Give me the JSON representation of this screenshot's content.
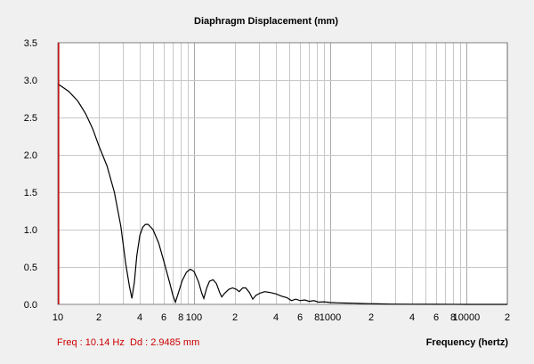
{
  "chart_data": {
    "type": "line",
    "title": "Diaphragm Displacement (mm)",
    "xlabel": "Frequency (hertz)",
    "ylabel": "",
    "x_scale": "log",
    "xlim": [
      10,
      20000
    ],
    "ylim": [
      0,
      3.5
    ],
    "grid": true,
    "y_ticks": [
      "0.0",
      "0.5",
      "1.0",
      "1.5",
      "2.0",
      "2.5",
      "3.0",
      "3.5"
    ],
    "x_tick_labels": [
      {
        "f": 10,
        "label": "10"
      },
      {
        "f": 20,
        "label": "2"
      },
      {
        "f": 40,
        "label": "4"
      },
      {
        "f": 60,
        "label": "6"
      },
      {
        "f": 80,
        "label": "8"
      },
      {
        "f": 100,
        "label": "100"
      },
      {
        "f": 200,
        "label": "2"
      },
      {
        "f": 400,
        "label": "4"
      },
      {
        "f": 600,
        "label": "6"
      },
      {
        "f": 800,
        "label": "8"
      },
      {
        "f": 1000,
        "label": "1000"
      },
      {
        "f": 2000,
        "label": "2"
      },
      {
        "f": 4000,
        "label": "4"
      },
      {
        "f": 6000,
        "label": "6"
      },
      {
        "f": 8000,
        "label": "8"
      },
      {
        "f": 10000,
        "label": "10000"
      },
      {
        "f": 20000,
        "label": "2"
      }
    ],
    "series": [
      {
        "color": "#000000",
        "points": [
          [
            10,
            2.95
          ],
          [
            12,
            2.85
          ],
          [
            14,
            2.72
          ],
          [
            16,
            2.55
          ],
          [
            18,
            2.35
          ],
          [
            20,
            2.12
          ],
          [
            23,
            1.85
          ],
          [
            26,
            1.5
          ],
          [
            29,
            1.05
          ],
          [
            31.5,
            0.55
          ],
          [
            33.5,
            0.25
          ],
          [
            35,
            0.08
          ],
          [
            36.5,
            0.3
          ],
          [
            38,
            0.65
          ],
          [
            40,
            0.92
          ],
          [
            42,
            1.03
          ],
          [
            44,
            1.07
          ],
          [
            46,
            1.07
          ],
          [
            50,
            1.0
          ],
          [
            55,
            0.82
          ],
          [
            60,
            0.58
          ],
          [
            66,
            0.3
          ],
          [
            70,
            0.12
          ],
          [
            73,
            0.03
          ],
          [
            77,
            0.16
          ],
          [
            82,
            0.32
          ],
          [
            88,
            0.43
          ],
          [
            94,
            0.47
          ],
          [
            100,
            0.44
          ],
          [
            108,
            0.3
          ],
          [
            114,
            0.15
          ],
          [
            118,
            0.08
          ],
          [
            124,
            0.22
          ],
          [
            130,
            0.31
          ],
          [
            138,
            0.33
          ],
          [
            146,
            0.28
          ],
          [
            155,
            0.15
          ],
          [
            160,
            0.1
          ],
          [
            168,
            0.15
          ],
          [
            180,
            0.2
          ],
          [
            192,
            0.22
          ],
          [
            205,
            0.2
          ],
          [
            215,
            0.17
          ],
          [
            228,
            0.22
          ],
          [
            240,
            0.22
          ],
          [
            255,
            0.16
          ],
          [
            270,
            0.07
          ],
          [
            285,
            0.12
          ],
          [
            305,
            0.15
          ],
          [
            330,
            0.17
          ],
          [
            360,
            0.16
          ],
          [
            400,
            0.14
          ],
          [
            440,
            0.11
          ],
          [
            480,
            0.09
          ],
          [
            520,
            0.05
          ],
          [
            560,
            0.07
          ],
          [
            600,
            0.05
          ],
          [
            650,
            0.06
          ],
          [
            700,
            0.04
          ],
          [
            760,
            0.05
          ],
          [
            820,
            0.03
          ],
          [
            900,
            0.035
          ],
          [
            1000,
            0.025
          ],
          [
            1150,
            0.02
          ],
          [
            1300,
            0.018
          ],
          [
            1500,
            0.015
          ],
          [
            1700,
            0.012
          ],
          [
            1900,
            0.01
          ],
          [
            2200,
            0.007
          ],
          [
            2800,
            0.004
          ],
          [
            4000,
            0.002
          ],
          [
            6000,
            0.001
          ],
          [
            10000,
            0.0005
          ],
          [
            20000,
            0.0002
          ]
        ]
      }
    ],
    "cursor": {
      "f": 10.14,
      "color": "#cc0000"
    }
  },
  "status": {
    "freq": "Freq : 10.14 Hz",
    "dd": "Dd : 2.9485 mm"
  },
  "colors": {
    "background": "#f0f0f0",
    "plot_bg": "#ffffff",
    "grid": "#c8c8c8",
    "grid_major": "#a8a8a8",
    "curve": "#000000",
    "cursor": "#cc0000",
    "status_text": "#cc0000"
  }
}
